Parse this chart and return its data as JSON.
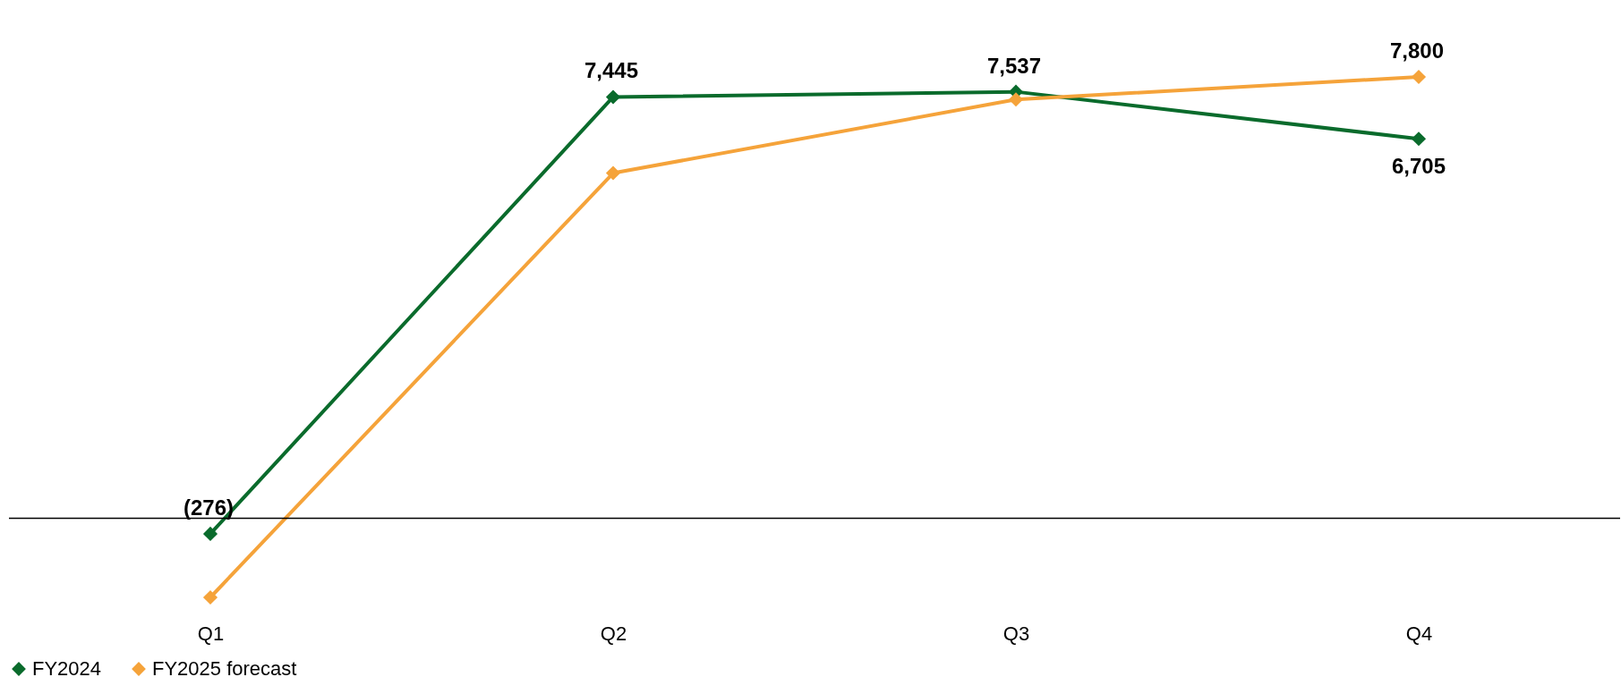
{
  "chart_data": {
    "type": "line",
    "categories": [
      "Q1",
      "Q2",
      "Q3",
      "Q4"
    ],
    "series": [
      {
        "name": "FY2024",
        "color": "#0a6b2c",
        "values": [
          -276,
          7445,
          7537,
          6705
        ],
        "value_labels": [
          "(276)",
          "7,445",
          "7,537",
          "6,705"
        ]
      },
      {
        "name": "FY2025 forecast",
        "color": "#f5a33a",
        "values": [
          -1400,
          6100,
          7400,
          7800
        ],
        "value_labels": [
          null,
          null,
          null,
          "7,800"
        ]
      }
    ],
    "ref_lines": [
      {
        "axis": "y",
        "value": 0,
        "color": "#000000"
      }
    ],
    "marker": "diamond",
    "line_style": "solid",
    "grid": false,
    "legend": "bottom"
  }
}
